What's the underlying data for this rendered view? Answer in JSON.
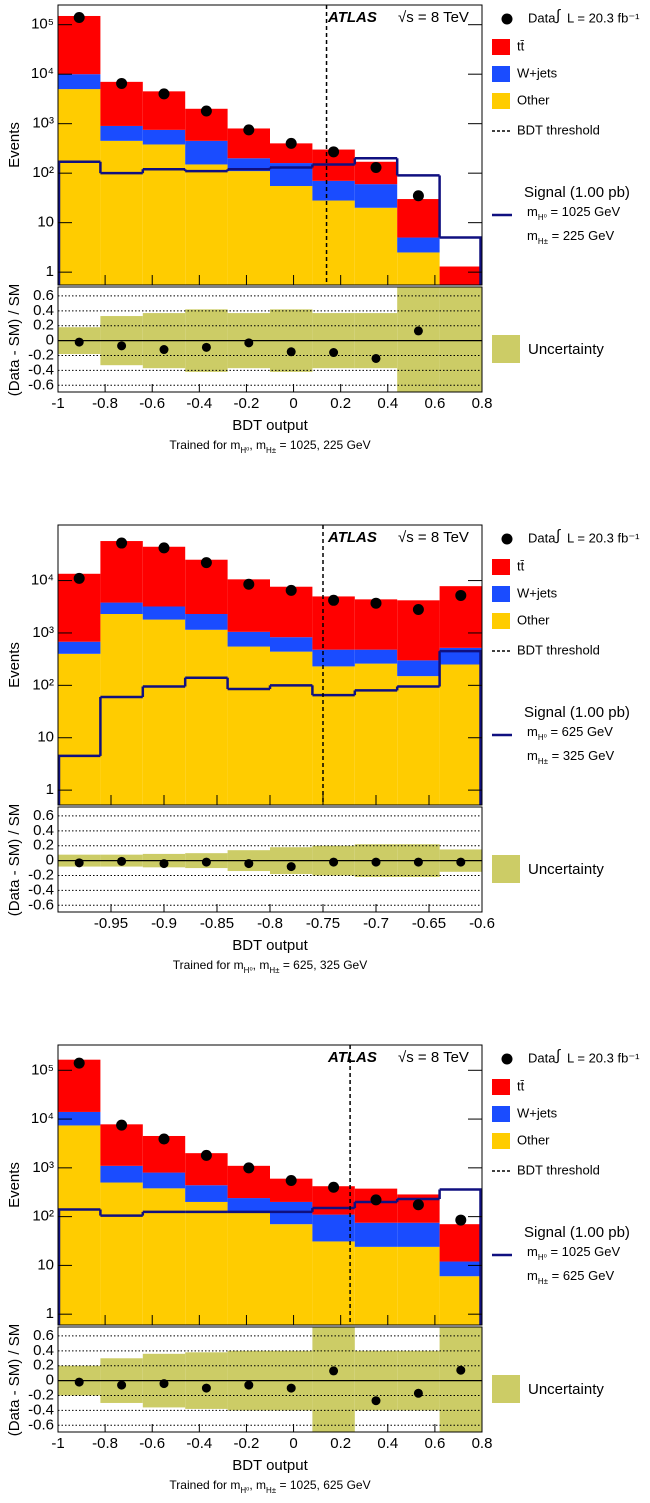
{
  "chart_data": [
    {
      "type": "histogram",
      "stacked": true,
      "log_y": true,
      "atlas": "ATLAS",
      "energy": "√s = 8 TeV",
      "lumi_symbol": "∫",
      "lumi": "L = 20.3 fb⁻¹",
      "ylabel": "Events",
      "xlabel": "BDT output",
      "caption": [
        "Trained for m",
        "H⁰",
        ", m",
        "H±",
        " = 1025, 225 GeV"
      ],
      "bins": [
        -1,
        -0.82,
        -0.64,
        -0.46,
        -0.28,
        -0.1,
        0.08,
        0.26,
        0.44,
        0.62,
        0.8
      ],
      "xlim": [
        -1,
        0.8
      ],
      "xticks": [
        -1,
        -0.8,
        -0.6,
        -0.4,
        -0.2,
        0,
        0.2,
        0.4,
        0.6,
        0.8
      ],
      "ylim": [
        0.55,
        250000
      ],
      "yticks": [
        1,
        10,
        {
          "value": 100,
          "label": "10²"
        },
        {
          "value": 1000,
          "label": "10³"
        },
        {
          "value": 10000,
          "label": "10⁴"
        },
        {
          "value": 100000,
          "label": "10⁵"
        }
      ],
      "series": [
        {
          "name": "Other",
          "color": "#ffcc00",
          "values": [
            5000,
            450,
            380,
            150,
            110,
            55,
            28,
            20,
            2.5,
            0
          ]
        },
        {
          "name": "W+jets",
          "color": "#1a4cff",
          "values": [
            5000,
            450,
            370,
            300,
            90,
            105,
            42,
            40,
            2.5,
            0
          ]
        },
        {
          "name": "tt̄",
          "color": "#ff0000",
          "values": [
            140000,
            6100,
            3750,
            1550,
            600,
            240,
            230,
            110,
            25,
            1.3
          ]
        }
      ],
      "data": {
        "name": "Data",
        "color": "#000000",
        "values": [
          140000,
          6500,
          4000,
          1800,
          750,
          400,
          270,
          130,
          35,
          null
        ]
      },
      "signal": {
        "name": "Signal (1.00 pb)",
        "color": "#101080",
        "mass_labels": [
          [
            "m",
            "H⁰",
            " = 1025 GeV"
          ],
          [
            "m",
            "H±",
            " = 225 GeV"
          ]
        ],
        "values": [
          170,
          100,
          120,
          110,
          120,
          130,
          150,
          200,
          90,
          5
        ]
      },
      "threshold": {
        "name": "BDT threshold",
        "value": 0.14
      },
      "ratio": {
        "ylabel": "(Data - SM) / SM",
        "ylim": [
          -0.69,
          0.72
        ],
        "yticks": [
          -0.6,
          -0.4,
          -0.2,
          0,
          0.2,
          0.4,
          0.6
        ],
        "values": [
          -0.02,
          -0.07,
          -0.12,
          -0.09,
          -0.03,
          -0.15,
          -0.16,
          -0.24,
          0.13,
          null
        ],
        "uncertainty": {
          "name": "Uncertainty",
          "color": "#cccc66",
          "values": [
            0.18,
            0.33,
            0.37,
            0.42,
            0.37,
            0.42,
            0.37,
            0.37,
            1,
            1
          ]
        }
      }
    },
    {
      "type": "histogram",
      "stacked": true,
      "log_y": true,
      "atlas": "ATLAS",
      "energy": "√s = 8 TeV",
      "lumi_symbol": "∫",
      "lumi": "L = 20.3 fb⁻¹",
      "ylabel": "Events",
      "xlabel": "BDT output",
      "caption": [
        "Trained for m",
        "H⁰",
        ", m",
        "H±",
        " = 625, 325 GeV"
      ],
      "bins": [
        -1,
        -0.96,
        -0.92,
        -0.88,
        -0.84,
        -0.8,
        -0.76,
        -0.72,
        -0.68,
        -0.64,
        -0.6
      ],
      "xlim": [
        -1,
        -0.6
      ],
      "xticks": [
        -0.95,
        -0.9,
        -0.85,
        -0.8,
        -0.75,
        -0.7,
        -0.65,
        -0.6
      ],
      "ylim": [
        0.52,
        115000
      ],
      "yticks": [
        1,
        10,
        {
          "value": 100,
          "label": "10²"
        },
        {
          "value": 1000,
          "label": "10³"
        },
        {
          "value": 10000,
          "label": "10⁴"
        }
      ],
      "series": [
        {
          "name": "Other",
          "color": "#ffcc00",
          "values": [
            400,
            2300,
            1800,
            1150,
            550,
            440,
            230,
            260,
            150,
            250
          ]
        },
        {
          "name": "W+jets",
          "color": "#1a4cff",
          "values": [
            280,
            1500,
            1400,
            1150,
            500,
            390,
            250,
            220,
            150,
            270
          ]
        },
        {
          "name": "tt̄",
          "color": "#ff0000",
          "values": [
            12800,
            53000,
            41000,
            22700,
            9500,
            6800,
            4500,
            3900,
            3900,
            7300
          ]
        }
      ],
      "data": {
        "name": "Data",
        "color": "#000000",
        "values": [
          11000,
          52000,
          42000,
          22000,
          8500,
          6500,
          4200,
          3700,
          2800,
          5200
        ]
      },
      "signal": {
        "name": "Signal (1.00 pb)",
        "color": "#101080",
        "mass_labels": [
          [
            "m",
            "H⁰",
            " = 625 GeV"
          ],
          [
            "m",
            "H±",
            " = 325 GeV"
          ]
        ],
        "values": [
          4.5,
          60,
          95,
          140,
          85,
          100,
          65,
          80,
          95,
          450
        ]
      },
      "threshold": {
        "name": "BDT threshold",
        "value": -0.75
      },
      "ratio": {
        "ylabel": "(Data - SM) / SM",
        "ylim": [
          -0.69,
          0.72
        ],
        "yticks": [
          -0.6,
          -0.4,
          -0.2,
          0,
          0.2,
          0.4,
          0.6
        ],
        "values": [
          -0.03,
          -0.01,
          -0.04,
          -0.02,
          -0.04,
          -0.08,
          -0.02,
          -0.02,
          -0.02,
          -0.02
        ],
        "uncertainty": {
          "name": "Uncertainty",
          "color": "#cccc66",
          "values": [
            0.08,
            0.08,
            0.09,
            0.1,
            0.14,
            0.18,
            0.2,
            0.22,
            0.22,
            0.15
          ]
        }
      }
    },
    {
      "type": "histogram",
      "stacked": true,
      "log_y": true,
      "atlas": "ATLAS",
      "energy": "√s = 8 TeV",
      "lumi_symbol": "∫",
      "lumi": "L = 20.3 fb⁻¹",
      "ylabel": "Events",
      "xlabel": "BDT output",
      "caption": [
        "Trained for m",
        "H⁰",
        ", m",
        "H±",
        " = 1025, 625 GeV"
      ],
      "bins": [
        -1,
        -0.82,
        -0.64,
        -0.46,
        -0.28,
        -0.1,
        0.08,
        0.26,
        0.44,
        0.62,
        0.8
      ],
      "xlim": [
        -1,
        0.8
      ],
      "xticks": [
        -1,
        -0.8,
        -0.6,
        -0.4,
        -0.2,
        0,
        0.2,
        0.4,
        0.6,
        0.8
      ],
      "ylim": [
        0.6,
        330000
      ],
      "yticks": [
        1,
        10,
        {
          "value": 100,
          "label": "10²"
        },
        {
          "value": 1000,
          "label": "10³"
        },
        {
          "value": 10000,
          "label": "10⁴"
        },
        {
          "value": 100000,
          "label": "10⁵"
        }
      ],
      "series": [
        {
          "name": "Other",
          "color": "#ffcc00",
          "values": [
            7400,
            500,
            380,
            200,
            125,
            70,
            31,
            24,
            24,
            6
          ]
        },
        {
          "name": "W+jets",
          "color": "#1a4cff",
          "values": [
            6600,
            600,
            420,
            240,
            115,
            130,
            79,
            51,
            51,
            6
          ]
        },
        {
          "name": "tt̄",
          "color": "#ff0000",
          "values": [
            151000,
            6700,
            3700,
            1560,
            860,
            400,
            310,
            300,
            210,
            58
          ]
        }
      ],
      "data": {
        "name": "Data",
        "color": "#000000",
        "values": [
          140000,
          7500,
          3900,
          1800,
          1000,
          550,
          400,
          220,
          175,
          85
        ]
      },
      "signal": {
        "name": "Signal (1.00 pb)",
        "color": "#101080",
        "mass_labels": [
          [
            "m",
            "H⁰",
            " = 1025 GeV"
          ],
          [
            "m",
            "H±",
            " = 625 GeV"
          ]
        ],
        "values": [
          140,
          105,
          125,
          125,
          125,
          125,
          150,
          200,
          230,
          360
        ]
      },
      "threshold": {
        "name": "BDT threshold",
        "value": 0.24
      },
      "ratio": {
        "ylabel": "(Data - SM) / SM",
        "ylim": [
          -0.69,
          0.72
        ],
        "yticks": [
          -0.6,
          -0.4,
          -0.2,
          0,
          0.2,
          0.4,
          0.6
        ],
        "values": [
          -0.02,
          -0.06,
          -0.04,
          -0.1,
          -0.06,
          -0.1,
          0.13,
          -0.27,
          -0.17,
          0.14
        ],
        "uncertainty": {
          "name": "Uncertainty",
          "color": "#cccc66",
          "values": [
            0.2,
            0.3,
            0.36,
            0.38,
            0.4,
            0.4,
            1,
            0.4,
            0.4,
            1
          ]
        }
      }
    }
  ]
}
